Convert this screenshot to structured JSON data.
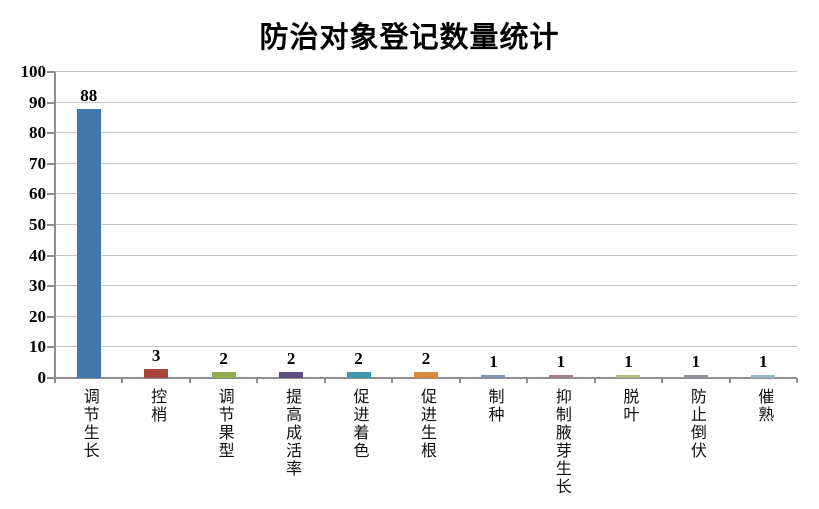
{
  "chart_data": {
    "type": "bar",
    "title": "防治对象登记数量统计",
    "categories": [
      "调节生长",
      "控梢",
      "调节果型",
      "提高成活率",
      "促进着色",
      "促进生根",
      "制种",
      "抑制腋芽生长",
      "脱叶",
      "防止倒伏",
      "催熟"
    ],
    "values": [
      88,
      3,
      2,
      2,
      2,
      2,
      1,
      1,
      1,
      1,
      1
    ],
    "bar_colors": [
      "#4377ae",
      "#a8433c",
      "#94ae55",
      "#5d4c84",
      "#3f97ae",
      "#da8c3e",
      "#7f94ad",
      "#aa7e87",
      "#b5bb83",
      "#93939f",
      "#94b9c3"
    ],
    "xlabel": "",
    "ylabel": "",
    "ylim": [
      0,
      100
    ],
    "yticks": [
      0,
      10,
      20,
      30,
      40,
      50,
      60,
      70,
      80,
      90,
      100
    ],
    "grid": true,
    "value_labels_shown": true,
    "legend": "none"
  },
  "colors": {
    "background": "#ffffff",
    "axis": "#8f8f8f",
    "gridline": "#c6c6c6",
    "text": "#000000"
  }
}
